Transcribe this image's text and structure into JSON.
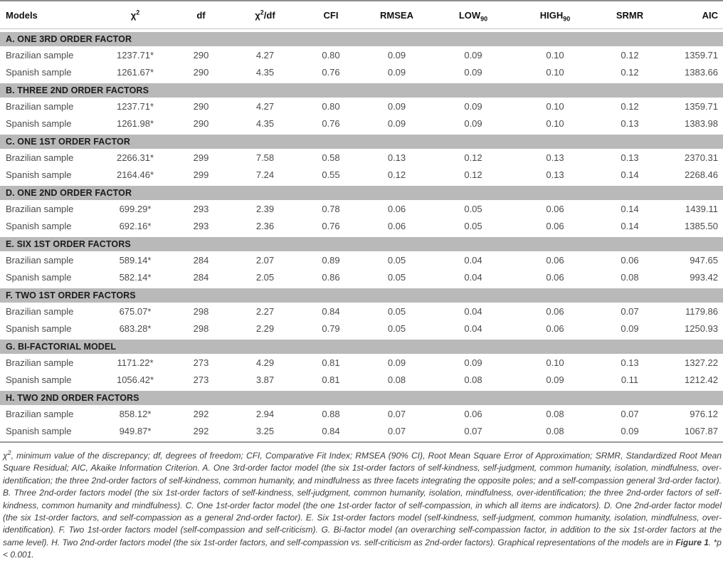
{
  "table": {
    "columns": [
      {
        "key": "model",
        "label": "Models"
      },
      {
        "key": "chi2",
        "label": "χ",
        "sup": "2"
      },
      {
        "key": "df",
        "label": "df"
      },
      {
        "key": "chi2df",
        "label": "χ",
        "sup": "2",
        "suffix": "/df"
      },
      {
        "key": "cfi",
        "label": "CFI"
      },
      {
        "key": "rmsea",
        "label": "RMSEA"
      },
      {
        "key": "low",
        "label": "LOW",
        "sub": "90"
      },
      {
        "key": "high",
        "label": "HIGH",
        "sub": "90"
      },
      {
        "key": "srmr",
        "label": "SRMR"
      },
      {
        "key": "aic",
        "label": "AIC"
      }
    ],
    "sections": [
      {
        "label": "A. ONE 3RD ORDER FACTOR",
        "rows": [
          {
            "model": "Brazilian sample",
            "chi2": "1237.71*",
            "df": "290",
            "chi2df": "4.27",
            "cfi": "0.80",
            "rmsea": "0.09",
            "low": "0.09",
            "high": "0.10",
            "srmr": "0.12",
            "aic": "1359.71"
          },
          {
            "model": "Spanish sample",
            "chi2": "1261.67*",
            "df": "290",
            "chi2df": "4.35",
            "cfi": "0.76",
            "rmsea": "0.09",
            "low": "0.09",
            "high": "0.10",
            "srmr": "0.12",
            "aic": "1383.66"
          }
        ]
      },
      {
        "label": "B. THREE 2ND ORDER FACTORS",
        "rows": [
          {
            "model": "Brazilian sample",
            "chi2": "1237.71*",
            "df": "290",
            "chi2df": "4.27",
            "cfi": "0.80",
            "rmsea": "0.09",
            "low": "0.09",
            "high": "0.10",
            "srmr": "0.12",
            "aic": "1359.71"
          },
          {
            "model": "Spanish sample",
            "chi2": "1261.98*",
            "df": "290",
            "chi2df": "4.35",
            "cfi": "0.76",
            "rmsea": "0.09",
            "low": "0.09",
            "high": "0.10",
            "srmr": "0.13",
            "aic": "1383.98"
          }
        ]
      },
      {
        "label": "C. ONE 1ST ORDER FACTOR",
        "rows": [
          {
            "model": "Brazilian sample",
            "chi2": "2266.31*",
            "df": "299",
            "chi2df": "7.58",
            "cfi": "0.58",
            "rmsea": "0.13",
            "low": "0.12",
            "high": "0.13",
            "srmr": "0.13",
            "aic": "2370.31"
          },
          {
            "model": "Spanish sample",
            "chi2": "2164.46*",
            "df": "299",
            "chi2df": "7.24",
            "cfi": "0.55",
            "rmsea": "0.12",
            "low": "0.12",
            "high": "0.13",
            "srmr": "0.14",
            "aic": "2268.46"
          }
        ]
      },
      {
        "label": "D. ONE 2ND ORDER FACTOR",
        "rows": [
          {
            "model": "Brazilian sample",
            "chi2": "699.29*",
            "df": "293",
            "chi2df": "2.39",
            "cfi": "0.78",
            "rmsea": "0.06",
            "low": "0.05",
            "high": "0.06",
            "srmr": "0.14",
            "aic": "1439.11"
          },
          {
            "model": "Spanish sample",
            "chi2": "692.16*",
            "df": "293",
            "chi2df": "2.36",
            "cfi": "0.76",
            "rmsea": "0.06",
            "low": "0.05",
            "high": "0.06",
            "srmr": "0.14",
            "aic": "1385.50"
          }
        ]
      },
      {
        "label": "E. SIX 1ST ORDER FACTORS",
        "rows": [
          {
            "model": "Brazilian sample",
            "chi2": "589.14*",
            "df": "284",
            "chi2df": "2.07",
            "cfi": "0.89",
            "rmsea": "0.05",
            "low": "0.04",
            "high": "0.06",
            "srmr": "0.06",
            "aic": "947.65"
          },
          {
            "model": "Spanish sample",
            "chi2": "582.14*",
            "df": "284",
            "chi2df": "2.05",
            "cfi": "0.86",
            "rmsea": "0.05",
            "low": "0.04",
            "high": "0.06",
            "srmr": "0.08",
            "aic": "993.42"
          }
        ]
      },
      {
        "label": "F. TWO 1ST ORDER FACTORS",
        "rows": [
          {
            "model": "Brazilian sample",
            "chi2": "675.07*",
            "df": "298",
            "chi2df": "2.27",
            "cfi": "0.84",
            "rmsea": "0.05",
            "low": "0.04",
            "high": "0.06",
            "srmr": "0.07",
            "aic": "1179.86"
          },
          {
            "model": "Spanish sample",
            "chi2": "683.28*",
            "df": "298",
            "chi2df": "2.29",
            "cfi": "0.79",
            "rmsea": "0.05",
            "low": "0.04",
            "high": "0.06",
            "srmr": "0.09",
            "aic": "1250.93"
          }
        ]
      },
      {
        "label": "G. BI-FACTORIAL MODEL",
        "rows": [
          {
            "model": "Brazilian sample",
            "chi2": "1171.22*",
            "df": "273",
            "chi2df": "4.29",
            "cfi": "0.81",
            "rmsea": "0.09",
            "low": "0.09",
            "high": "0.10",
            "srmr": "0.13",
            "aic": "1327.22"
          },
          {
            "model": "Spanish sample",
            "chi2": "1056.42*",
            "df": "273",
            "chi2df": "3.87",
            "cfi": "0.81",
            "rmsea": "0.08",
            "low": "0.08",
            "high": "0.09",
            "srmr": "0.11",
            "aic": "1212.42"
          }
        ]
      },
      {
        "label": "H. TWO 2ND ORDER FACTORS",
        "rows": [
          {
            "model": "Brazilian sample",
            "chi2": "858.12*",
            "df": "292",
            "chi2df": "2.94",
            "cfi": "0.88",
            "rmsea": "0.07",
            "low": "0.06",
            "high": "0.08",
            "srmr": "0.07",
            "aic": "976.12"
          },
          {
            "model": "Spanish sample",
            "chi2": "949.87*",
            "df": "292",
            "chi2df": "3.25",
            "cfi": "0.84",
            "rmsea": "0.07",
            "low": "0.07",
            "high": "0.08",
            "srmr": "0.09",
            "aic": "1067.87"
          }
        ]
      }
    ]
  },
  "footnote": {
    "chi_base": "χ",
    "chi_sup": "2",
    "text_after_chi": ", minimum value of the discrepancy; df, degrees of freedom; CFI, Comparative Fit Index; RMSEA (90% CI), Root Mean Square Error of Approximation; SRMR, Standardized Root Mean Square Residual; AIC, Akaike Information Criterion. A. One 3rd-order factor model (the six 1st-order factors of self-kindness, self-judgment, common humanity, isolation, mindfulness, over-identification; the three 2nd-order factors of self-kindness, common humanity, and mindfulness as three facets integrating the opposite poles; and a self-compassion general 3rd-order factor). B. Three 2nd-order factors model (the six 1st-order factors of self-kindness, self-judgment, common humanity, isolation, mindfulness, over-identification; the three 2nd-order factors of self-kindness, common humanity and mindfulness). C. One 1st-order factor model (the one 1st-order factor of self-compassion, in which all items are indicators). D. One 2nd-order factor model (the six 1st-order factors, and self-compassion as a general 2nd-order factor). E. Six 1st-order factors model (self-kindness, self-judgment, common humanity, isolation, mindfulness, over-identification). F. Two 1st-order factors model (self-compassion and self-criticism). G. Bi-factor model (an overarching self-compassion factor, in addition to the six 1st-order factors at the same level). H. Two 2nd-order factors model (the six 1st-order factors, and self-compassion vs. self-criticism as 2nd-order factors). Graphical representations of the models are in ",
    "figure_ref": "Figure 1",
    "text_after_figure": ". *p < 0.001."
  },
  "colors": {
    "section_bar_bg": "#b9b9b9",
    "header_text": "#111111",
    "body_text": "#4b4b4b",
    "rule": "#9a9a9a"
  }
}
